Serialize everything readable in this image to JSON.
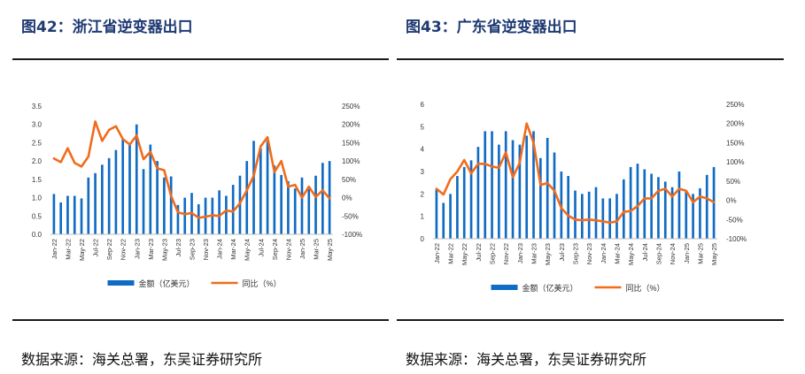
{
  "panels": [
    {
      "title": "图42：浙江省逆变器出口",
      "source": "数据来源：海关总署，东吴证券研究所",
      "chart_data": {
        "type": "bar+line",
        "categories": [
          "Jan-22",
          "Feb-22",
          "Mar-22",
          "Apr-22",
          "May-22",
          "Jun-22",
          "Jul-22",
          "Aug-22",
          "Sep-22",
          "Oct-22",
          "Nov-22",
          "Dec-22",
          "Jan-23",
          "Feb-23",
          "Mar-23",
          "Apr-23",
          "May-23",
          "Jun-23",
          "Jul-23",
          "Aug-23",
          "Sep-23",
          "Oct-23",
          "Nov-23",
          "Dec-23",
          "Jan-24",
          "Feb-24",
          "Mar-24",
          "Apr-24",
          "May-24",
          "Jun-24",
          "Jul-24",
          "Aug-24",
          "Sep-24",
          "Oct-24",
          "Nov-24",
          "Dec-24",
          "Jan-25",
          "Feb-25",
          "Mar-25",
          "Apr-25",
          "May-25"
        ],
        "tick_labels": [
          "Jan-22",
          "Mar-22",
          "May-22",
          "Jul-22",
          "Sep-22",
          "Nov-22",
          "Jan-23",
          "Mar-23",
          "May-23",
          "Jul-23",
          "Sep-23",
          "Nov-23",
          "Jan-24",
          "Mar-24",
          "May-24",
          "Jul-24",
          "Sep-24",
          "Nov-24",
          "Jan-25",
          "Mar-25",
          "May-25"
        ],
        "series": [
          {
            "name": "金额（亿美元）",
            "type": "bar",
            "axis": "left",
            "values": [
              1.1,
              0.87,
              1.05,
              1.05,
              0.98,
              1.55,
              1.67,
              1.9,
              2.08,
              2.3,
              2.6,
              2.5,
              3.0,
              1.78,
              2.45,
              2.0,
              1.55,
              1.58,
              0.8,
              1.0,
              1.13,
              0.82,
              1.0,
              1.0,
              1.2,
              1.05,
              1.35,
              1.6,
              2.0,
              2.55,
              2.35,
              2.55,
              1.88,
              1.62,
              1.45,
              1.25,
              1.55,
              1.3,
              1.6,
              1.95,
              2.0
            ]
          },
          {
            "name": "同比（%）",
            "type": "line",
            "axis": "right",
            "values": [
              107,
              97,
              135,
              95,
              85,
              112,
              208,
              155,
              185,
              195,
              160,
              145,
              170,
              105,
              125,
              80,
              75,
              5,
              -40,
              -45,
              -42,
              -55,
              -52,
              -48,
              -50,
              -35,
              -38,
              -15,
              20,
              60,
              140,
              165,
              70,
              100,
              30,
              35,
              0,
              30,
              2,
              20,
              -2
            ]
          }
        ],
        "ylim_left": [
          0,
          3.5
        ],
        "yticks_left": [
          "0.0",
          "0.5",
          "1.0",
          "1.5",
          "2.0",
          "2.5",
          "3.0",
          "3.5"
        ],
        "ylim_right": [
          -100,
          250
        ],
        "yticks_right": [
          "-100%",
          "-50%",
          "0%",
          "50%",
          "100%",
          "150%",
          "200%",
          "250%"
        ],
        "legend_position": "bottom",
        "colors": {
          "bar": "#0f6bc4",
          "line": "#f06c1c"
        }
      }
    },
    {
      "title": "图43：广东省逆变器出口",
      "source": "数据来源：海关总署，东吴证券研究所",
      "chart_data": {
        "type": "bar+line",
        "categories": [
          "Jan-22",
          "Feb-22",
          "Mar-22",
          "Apr-22",
          "May-22",
          "Jun-22",
          "Jul-22",
          "Aug-22",
          "Sep-22",
          "Oct-22",
          "Nov-22",
          "Dec-22",
          "Jan-23",
          "Feb-23",
          "Mar-23",
          "Apr-23",
          "May-23",
          "Jun-23",
          "Jul-23",
          "Aug-23",
          "Sep-23",
          "Oct-23",
          "Nov-23",
          "Dec-23",
          "Jan-24",
          "Feb-24",
          "Mar-24",
          "Apr-24",
          "May-24",
          "Jun-24",
          "Jul-24",
          "Aug-24",
          "Sep-24",
          "Oct-24",
          "Nov-24",
          "Dec-24",
          "Jan-25",
          "Feb-25",
          "Mar-25",
          "Apr-25",
          "May-25"
        ],
        "tick_labels": [
          "Jan-22",
          "Mar-22",
          "May-22",
          "Jul-22",
          "Sep-22",
          "Nov-22",
          "Jan-23",
          "Mar-23",
          "May-23",
          "Jul-23",
          "Sep-23",
          "Nov-23",
          "Jan-24",
          "Mar-24",
          "May-24",
          "Jul-24",
          "Sep-24",
          "Nov-24",
          "Jan-25",
          "Mar-25",
          "May-25"
        ],
        "series": [
          {
            "name": "金额（亿美元）",
            "type": "bar",
            "axis": "left",
            "values": [
              2.2,
              1.6,
              2.0,
              2.8,
              3.2,
              3.5,
              4.1,
              4.8,
              4.8,
              4.2,
              4.8,
              4.4,
              4.2,
              4.6,
              4.8,
              3.6,
              4.5,
              3.85,
              3.0,
              2.8,
              2.15,
              2.0,
              2.1,
              2.3,
              1.8,
              1.8,
              2.0,
              2.65,
              3.2,
              3.35,
              3.1,
              2.9,
              2.75,
              2.55,
              2.3,
              3.0,
              2.1,
              2.0,
              2.25,
              2.85,
              3.2
            ]
          },
          {
            "name": "同比（%）",
            "type": "line",
            "axis": "right",
            "values": [
              30,
              15,
              55,
              75,
              105,
              70,
              95,
              95,
              88,
              85,
              125,
              60,
              98,
              200,
              150,
              40,
              45,
              25,
              -20,
              -40,
              -50,
              -52,
              -50,
              -52,
              -55,
              -58,
              -55,
              -30,
              -28,
              -15,
              5,
              5,
              25,
              30,
              10,
              30,
              25,
              -5,
              10,
              5,
              -5
            ]
          }
        ],
        "ylim_left": [
          0,
          6
        ],
        "yticks_left": [
          "0",
          "1",
          "2",
          "3",
          "4",
          "5",
          "6"
        ],
        "ylim_right": [
          -100,
          250
        ],
        "yticks_right": [
          "-100%",
          "-50%",
          "0%",
          "50%",
          "100%",
          "150%",
          "200%",
          "250%"
        ],
        "legend_position": "bottom",
        "colors": {
          "bar": "#0f6bc4",
          "line": "#f06c1c"
        }
      }
    }
  ]
}
